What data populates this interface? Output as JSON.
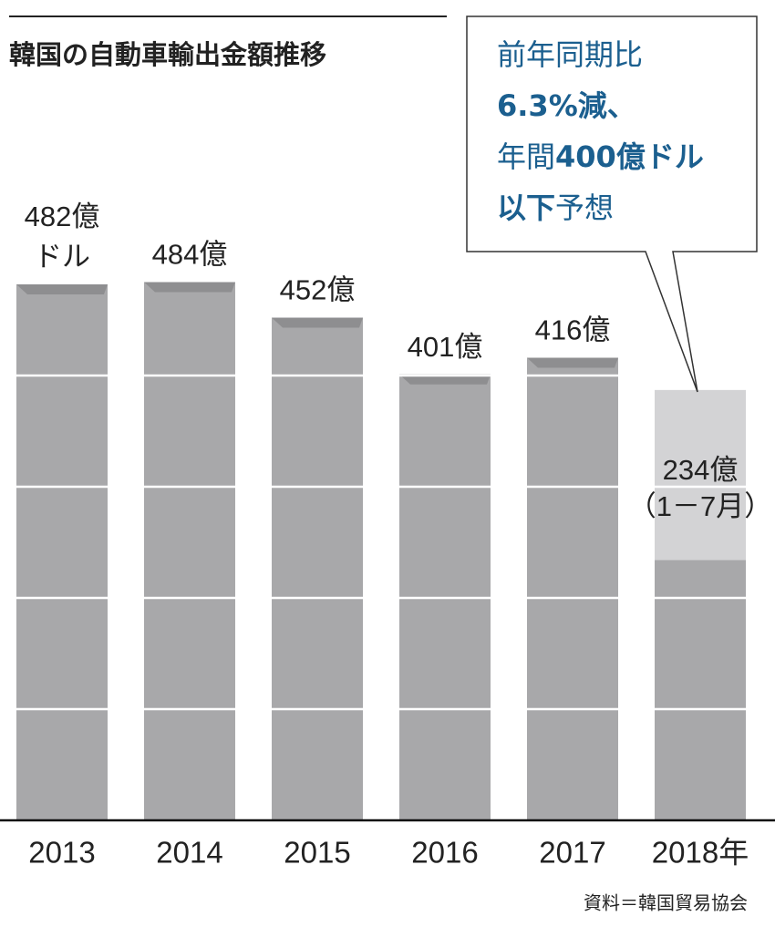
{
  "chart_data": {
    "type": "bar",
    "title": "韓国の自動車輸出金額推移",
    "categories": [
      "2013",
      "2014",
      "2015",
      "2016",
      "2017",
      "2018年"
    ],
    "values": [
      482,
      484,
      452,
      401,
      416,
      234
    ],
    "value_labels": [
      [
        "482億",
        "ドル"
      ],
      [
        "484億"
      ],
      [
        "452億"
      ],
      [
        "401億"
      ],
      [
        "416億"
      ],
      [
        "234億",
        "（1－7月）"
      ]
    ],
    "projected_values": [
      null,
      null,
      null,
      null,
      null,
      387
    ],
    "color": "#a8a8aa",
    "bevel_color": "#8e8e90",
    "projected_color": "#d3d3d5",
    "ylim": [
      0,
      500
    ],
    "yticks": [
      100,
      200,
      300,
      400
    ],
    "grid": true,
    "grid_color": "#ffffff",
    "annotation": [
      [
        {
          "text": "前年同期比",
          "bold": false
        }
      ],
      [
        {
          "text": "6.3%減、",
          "bold": true
        }
      ],
      [
        {
          "text": "年間",
          "bold": false
        },
        {
          "text": "400億ドル",
          "bold": true
        }
      ],
      [
        {
          "text": "以下",
          "bold": true
        },
        {
          "text": "予想",
          "bold": false
        }
      ]
    ],
    "source": "資料＝韓国貿易協会"
  }
}
